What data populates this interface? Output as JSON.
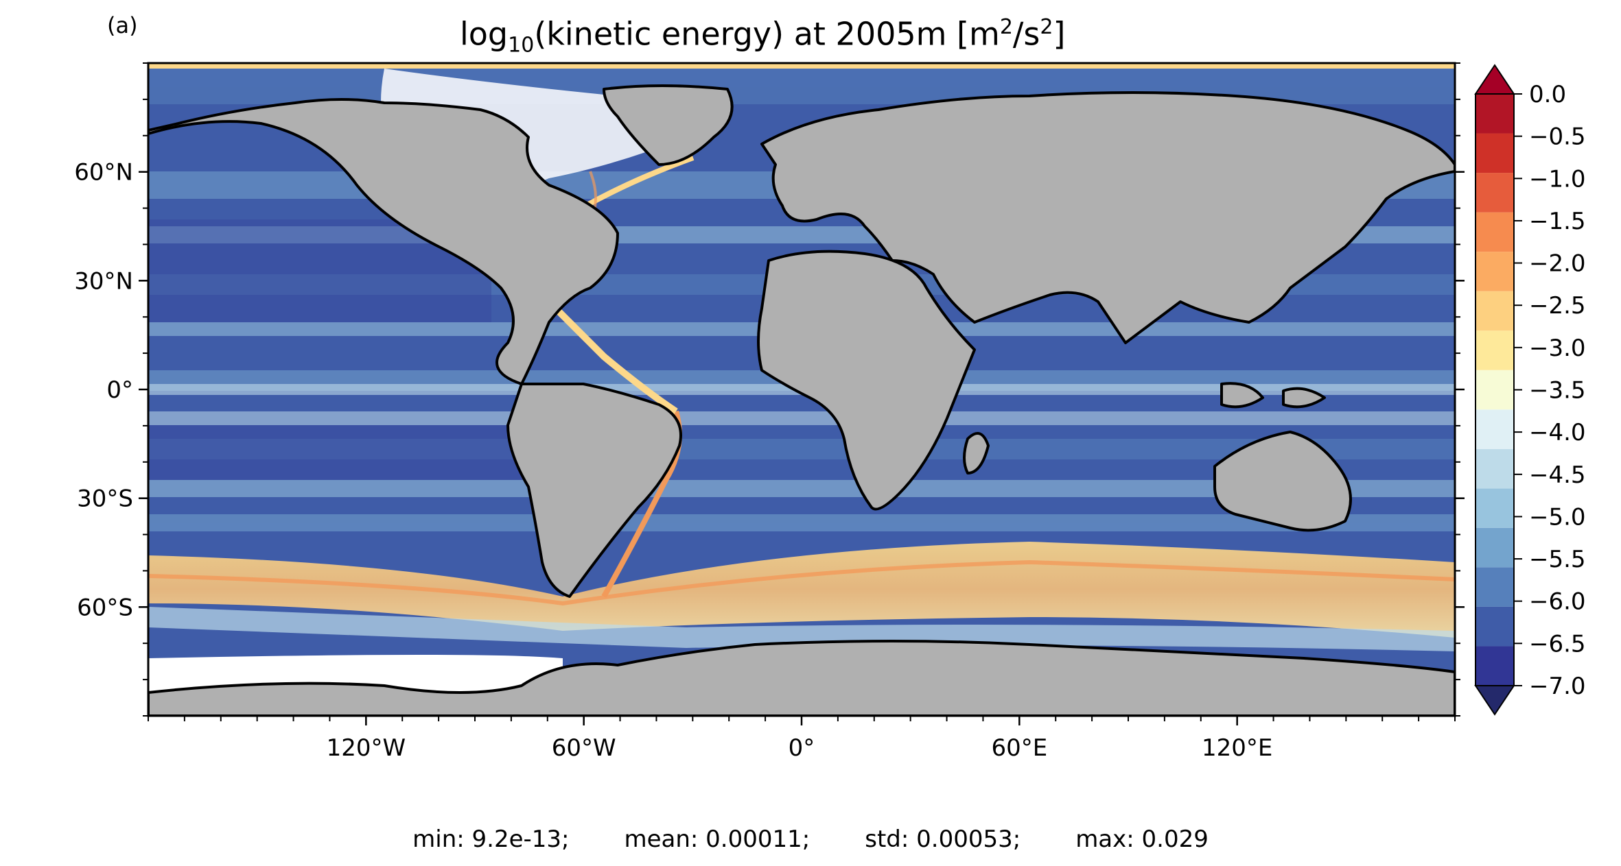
{
  "figure": {
    "panel_label": "(a)",
    "title_pre": "log",
    "title_sub": "10",
    "title_mid": "(kinetic energy) at 2005m [m",
    "title_sup1": "2",
    "title_mid2": "/s",
    "title_sup2": "2",
    "title_post": "]",
    "stats": {
      "min": "min: 9.2e-13;",
      "mean": "mean: 0.00011;",
      "std": "std: 0.00053;",
      "max": "max: 0.029"
    },
    "colors": {
      "land": "#b0b0b0",
      "ocean_low": "#2e4aa3",
      "ocean_mid": "#a6cfe3",
      "ocean_high": "#fdd88a",
      "jet": "#f29a5a"
    }
  },
  "chart_data": {
    "type": "heatmap",
    "title": "log10(kinetic energy) at 2005m [m2/s2]",
    "xlabel": "",
    "ylabel": "",
    "x_ticks": [
      "120°W",
      "60°W",
      "0°",
      "60°E",
      "120°E"
    ],
    "x_tick_values": [
      -120,
      -60,
      0,
      60,
      120
    ],
    "y_ticks": [
      "60°N",
      "30°N",
      "0°",
      "30°S",
      "60°S"
    ],
    "y_tick_values": [
      60,
      30,
      0,
      -30,
      -60
    ],
    "xlim": [
      -180,
      180
    ],
    "ylim": [
      -90,
      90
    ],
    "colorbar": {
      "ticks": [
        "0.0",
        "−0.5",
        "−1.0",
        "−1.5",
        "−2.0",
        "−2.5",
        "−3.0",
        "−3.5",
        "−4.0",
        "−4.5",
        "−5.0",
        "−5.5",
        "−6.0",
        "−6.5",
        "−7.0"
      ],
      "tick_values": [
        0.0,
        -0.5,
        -1.0,
        -1.5,
        -2.0,
        -2.5,
        -3.0,
        -3.5,
        -4.0,
        -4.5,
        -5.0,
        -5.5,
        -6.0,
        -6.5,
        -7.0
      ],
      "range": [
        -7.0,
        0.0
      ],
      "extend": "both",
      "bin_colors": [
        "#313695",
        "#3f5ca8",
        "#5680bb",
        "#74a4cd",
        "#98c4de",
        "#bedbe9",
        "#e0f0f5",
        "#f7fbd6",
        "#fee99a",
        "#fdd080",
        "#fbab62",
        "#f68b4f",
        "#e65c3c",
        "#cf3128",
        "#b21526"
      ]
    }
  }
}
